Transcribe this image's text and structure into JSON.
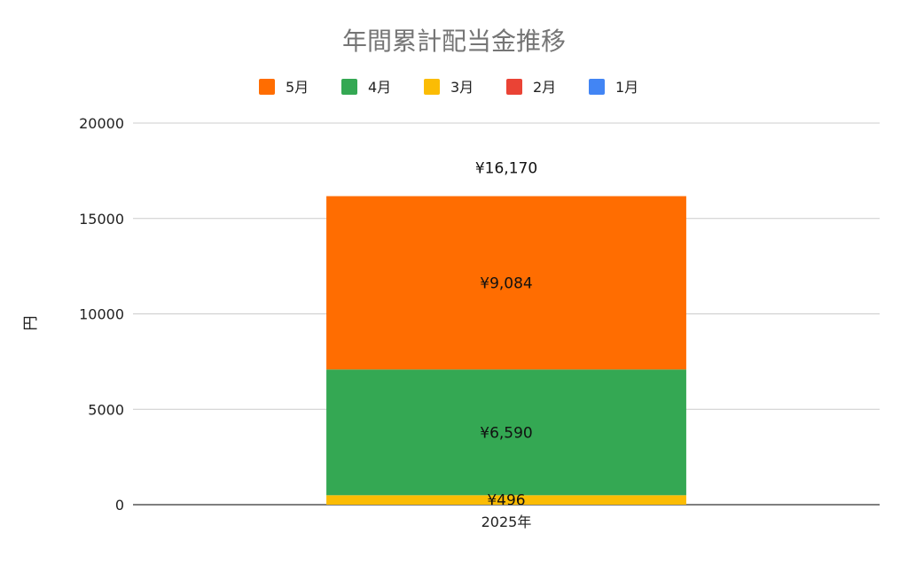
{
  "chart_data": {
    "type": "bar",
    "stacked": true,
    "title": "年間累計配当金推移",
    "ylabel": "円",
    "xlabel": "",
    "categories": [
      "2025年"
    ],
    "ylim": [
      0,
      20000
    ],
    "yticks": [
      0,
      5000,
      10000,
      15000,
      20000
    ],
    "grid": true,
    "legend_position": "top",
    "legend_order": [
      "5月",
      "4月",
      "3月",
      "2月",
      "1月"
    ],
    "series": [
      {
        "name": "1月",
        "color": "#4285F4",
        "values": [
          0
        ],
        "labels": [
          ""
        ]
      },
      {
        "name": "2月",
        "color": "#EA4335",
        "values": [
          0
        ],
        "labels": [
          ""
        ]
      },
      {
        "name": "3月",
        "color": "#FBBC04",
        "values": [
          496
        ],
        "labels": [
          "¥496"
        ]
      },
      {
        "name": "4月",
        "color": "#34A853",
        "values": [
          6590
        ],
        "labels": [
          "¥6,590"
        ]
      },
      {
        "name": "5月",
        "color": "#FF6D01",
        "values": [
          9084
        ],
        "labels": [
          "¥9,084"
        ]
      }
    ],
    "totals": [
      "¥16,170"
    ]
  }
}
